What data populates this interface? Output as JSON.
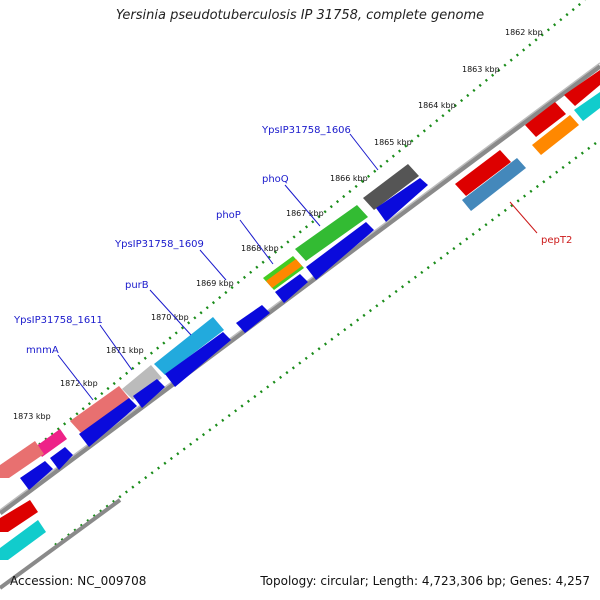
{
  "title": "Yersinia pseudotuberculosis IP 31758, complete genome",
  "accession": "Accession: NC_009708",
  "summary": "Topology: circular; Length: 4,723,306 bp; Genes: 4,257",
  "colors": {
    "backbone": "#888888",
    "tick": "#1a8c1a",
    "cds_reverse": "#0a0adc",
    "label_blue": "#1a1acc",
    "label_red": "#cc1a1a"
  },
  "ticks": [
    {
      "label": "1862 kbp"
    },
    {
      "label": "1863 kbp"
    },
    {
      "label": "1864 kbp"
    },
    {
      "label": "1865 kbp"
    },
    {
      "label": "1866 kbp"
    },
    {
      "label": "1867 kbp"
    },
    {
      "label": "1868 kbp"
    },
    {
      "label": "1869 kbp"
    },
    {
      "label": "1870 kbp"
    },
    {
      "label": "1871 kbp"
    },
    {
      "label": "1872 kbp"
    },
    {
      "label": "1873 kbp"
    }
  ],
  "gene_labels": [
    {
      "text": "YpsIP31758_1606",
      "color": "#1a1acc"
    },
    {
      "text": "phoQ",
      "color": "#1a1acc"
    },
    {
      "text": "phoP",
      "color": "#1a1acc"
    },
    {
      "text": "YpsIP31758_1609",
      "color": "#1a1acc"
    },
    {
      "text": "purB",
      "color": "#1a1acc"
    },
    {
      "text": "YpsIP31758_1611",
      "color": "#1a1acc"
    },
    {
      "text": "mnmA",
      "color": "#1a1acc"
    },
    {
      "text": "pepT2",
      "color": "#cc1a1a"
    }
  ]
}
